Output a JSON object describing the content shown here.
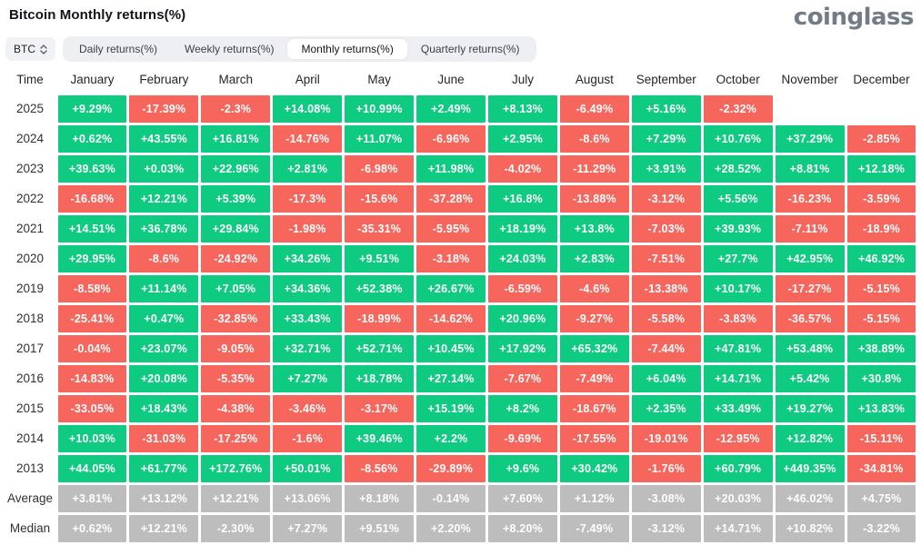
{
  "header": {
    "title": "Bitcoin Monthly returns(%)",
    "logo": "coinglass"
  },
  "controls": {
    "symbol_select": {
      "value": "BTC"
    },
    "tabs": [
      {
        "label": "Daily returns(%)",
        "active": false
      },
      {
        "label": "Weekly returns(%)",
        "active": false
      },
      {
        "label": "Monthly returns(%)",
        "active": true
      },
      {
        "label": "Quarterly returns(%)",
        "active": false
      }
    ]
  },
  "colors": {
    "positive": "#0ECB81",
    "negative": "#F6665D",
    "summary": "#BDBDBD"
  },
  "table": {
    "columns": [
      "Time",
      "January",
      "February",
      "March",
      "April",
      "May",
      "June",
      "July",
      "August",
      "September",
      "October",
      "November",
      "December"
    ],
    "rows": [
      {
        "label": "2025",
        "type": "year",
        "values": [
          "+9.29%",
          "-17.39%",
          "-2.3%",
          "+14.08%",
          "+10.99%",
          "+2.49%",
          "+8.13%",
          "-6.49%",
          "+5.16%",
          "-2.32%",
          "",
          ""
        ]
      },
      {
        "label": "2024",
        "type": "year",
        "values": [
          "+0.62%",
          "+43.55%",
          "+16.81%",
          "-14.76%",
          "+11.07%",
          "-6.96%",
          "+2.95%",
          "-8.6%",
          "+7.29%",
          "+10.76%",
          "+37.29%",
          "-2.85%"
        ]
      },
      {
        "label": "2023",
        "type": "year",
        "values": [
          "+39.63%",
          "+0.03%",
          "+22.96%",
          "+2.81%",
          "-6.98%",
          "+11.98%",
          "-4.02%",
          "-11.29%",
          "+3.91%",
          "+28.52%",
          "+8.81%",
          "+12.18%"
        ]
      },
      {
        "label": "2022",
        "type": "year",
        "values": [
          "-16.68%",
          "+12.21%",
          "+5.39%",
          "-17.3%",
          "-15.6%",
          "-37.28%",
          "+16.8%",
          "-13.88%",
          "-3.12%",
          "+5.56%",
          "-16.23%",
          "-3.59%"
        ]
      },
      {
        "label": "2021",
        "type": "year",
        "values": [
          "+14.51%",
          "+36.78%",
          "+29.84%",
          "-1.98%",
          "-35.31%",
          "-5.95%",
          "+18.19%",
          "+13.8%",
          "-7.03%",
          "+39.93%",
          "-7.11%",
          "-18.9%"
        ]
      },
      {
        "label": "2020",
        "type": "year",
        "values": [
          "+29.95%",
          "-8.6%",
          "-24.92%",
          "+34.26%",
          "+9.51%",
          "-3.18%",
          "+24.03%",
          "+2.83%",
          "-7.51%",
          "+27.7%",
          "+42.95%",
          "+46.92%"
        ]
      },
      {
        "label": "2019",
        "type": "year",
        "values": [
          "-8.58%",
          "+11.14%",
          "+7.05%",
          "+34.36%",
          "+52.38%",
          "+26.67%",
          "-6.59%",
          "-4.6%",
          "-13.38%",
          "+10.17%",
          "-17.27%",
          "-5.15%"
        ]
      },
      {
        "label": "2018",
        "type": "year",
        "values": [
          "-25.41%",
          "+0.47%",
          "-32.85%",
          "+33.43%",
          "-18.99%",
          "-14.62%",
          "+20.96%",
          "-9.27%",
          "-5.58%",
          "-3.83%",
          "-36.57%",
          "-5.15%"
        ]
      },
      {
        "label": "2017",
        "type": "year",
        "values": [
          "-0.04%",
          "+23.07%",
          "-9.05%",
          "+32.71%",
          "+52.71%",
          "+10.45%",
          "+17.92%",
          "+65.32%",
          "-7.44%",
          "+47.81%",
          "+53.48%",
          "+38.89%"
        ]
      },
      {
        "label": "2016",
        "type": "year",
        "values": [
          "-14.83%",
          "+20.08%",
          "-5.35%",
          "+7.27%",
          "+18.78%",
          "+27.14%",
          "-7.67%",
          "-7.49%",
          "+6.04%",
          "+14.71%",
          "+5.42%",
          "+30.8%"
        ]
      },
      {
        "label": "2015",
        "type": "year",
        "values": [
          "-33.05%",
          "+18.43%",
          "-4.38%",
          "-3.46%",
          "-3.17%",
          "+15.19%",
          "+8.2%",
          "-18.67%",
          "+2.35%",
          "+33.49%",
          "+19.27%",
          "+13.83%"
        ]
      },
      {
        "label": "2014",
        "type": "year",
        "values": [
          "+10.03%",
          "-31.03%",
          "-17.25%",
          "-1.6%",
          "+39.46%",
          "+2.2%",
          "-9.69%",
          "-17.55%",
          "-19.01%",
          "-12.95%",
          "+12.82%",
          "-15.11%"
        ]
      },
      {
        "label": "2013",
        "type": "year",
        "values": [
          "+44.05%",
          "+61.77%",
          "+172.76%",
          "+50.01%",
          "-8.56%",
          "-29.89%",
          "+9.6%",
          "+30.42%",
          "-1.76%",
          "+60.79%",
          "+449.35%",
          "-34.81%"
        ]
      },
      {
        "label": "Average",
        "type": "summary",
        "values": [
          "+3.81%",
          "+13.12%",
          "+12.21%",
          "+13.06%",
          "+8.18%",
          "-0.14%",
          "+7.60%",
          "+1.12%",
          "-3.08%",
          "+20.03%",
          "+46.02%",
          "+4.75%"
        ]
      },
      {
        "label": "Median",
        "type": "summary",
        "values": [
          "+0.62%",
          "+12.21%",
          "-2.30%",
          "+7.27%",
          "+9.51%",
          "+2.20%",
          "+8.20%",
          "-7.49%",
          "-3.12%",
          "+14.71%",
          "+10.82%",
          "-3.22%"
        ]
      }
    ]
  }
}
